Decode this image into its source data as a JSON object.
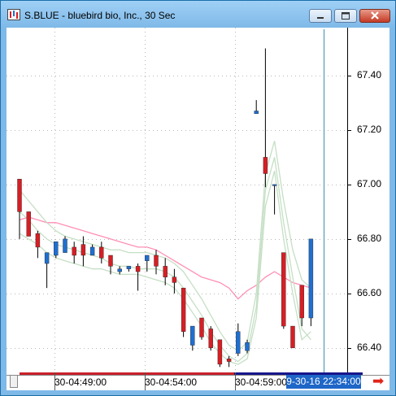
{
  "window": {
    "title": "S.BLUE - bluebird bio, Inc., 30 Sec",
    "controls": [
      "minimize",
      "maximize",
      "close"
    ]
  },
  "icons": {
    "app": "chart-window-icon",
    "minimize": "minimize-icon",
    "maximize": "maximize-icon",
    "close": "close-icon",
    "scroll": "arrow-right-icon"
  },
  "colors": {
    "up_candle": "#1f6fd1",
    "down_candle": "#d81e24",
    "ma_slow": "#ff8fb4",
    "bollinger": "#c5dfc5",
    "cursor_line": "#3a8fb0",
    "current_time_bg": "#1e66c7",
    "scroll_arrow": "#e2231a"
  },
  "time_axis": {
    "labels": [
      "30-04:49:00",
      "30-04:54:00",
      "30-04:59:00"
    ],
    "current_time": "9-30-16 22:34:00"
  },
  "chart_data": {
    "type": "candlestick",
    "title": "S.BLUE - bluebird bio, Inc., 30 Sec",
    "y_ticks": [
      "67.40",
      "67.20",
      "67.00",
      "66.80",
      "66.60",
      "66.40"
    ],
    "ylim": [
      66.31,
      67.57
    ],
    "grid": true,
    "candles": [
      {
        "o": 67.02,
        "h": 67.02,
        "l": 66.8,
        "c": 66.9
      },
      {
        "o": 66.9,
        "h": 66.9,
        "l": 66.81,
        "c": 66.81
      },
      {
        "o": 66.82,
        "h": 66.83,
        "l": 66.73,
        "c": 66.77
      },
      {
        "o": 66.71,
        "h": 66.74,
        "l": 66.62,
        "c": 66.75
      },
      {
        "o": 66.74,
        "h": 66.79,
        "l": 66.73,
        "c": 66.79
      },
      {
        "o": 66.75,
        "h": 66.81,
        "l": 66.75,
        "c": 66.8
      },
      {
        "o": 66.77,
        "h": 66.79,
        "l": 66.71,
        "c": 66.74
      },
      {
        "o": 66.78,
        "h": 66.81,
        "l": 66.7,
        "c": 66.74
      },
      {
        "o": 66.74,
        "h": 66.78,
        "l": 66.74,
        "c": 66.77
      },
      {
        "o": 66.77,
        "h": 66.79,
        "l": 66.71,
        "c": 66.73
      },
      {
        "o": 66.74,
        "h": 66.74,
        "l": 66.67,
        "c": 66.7
      },
      {
        "o": 66.68,
        "h": 66.7,
        "l": 66.67,
        "c": 66.69
      },
      {
        "o": 66.69,
        "h": 66.7,
        "l": 66.68,
        "c": 66.7
      },
      {
        "o": 66.7,
        "h": 66.71,
        "l": 66.61,
        "c": 66.68
      },
      {
        "o": 66.72,
        "h": 66.74,
        "l": 66.68,
        "c": 66.74
      },
      {
        "o": 66.74,
        "h": 66.76,
        "l": 66.67,
        "c": 66.7
      },
      {
        "o": 66.7,
        "h": 66.73,
        "l": 66.63,
        "c": 66.66
      },
      {
        "o": 66.66,
        "h": 66.69,
        "l": 66.6,
        "c": 66.64
      },
      {
        "o": 66.62,
        "h": 66.62,
        "l": 66.44,
        "c": 66.46
      },
      {
        "o": 66.41,
        "h": 66.48,
        "l": 66.39,
        "c": 66.48
      },
      {
        "o": 66.51,
        "h": 66.51,
        "l": 66.43,
        "c": 66.44
      },
      {
        "o": 66.47,
        "h": 66.48,
        "l": 66.39,
        "c": 66.4
      },
      {
        "o": 66.43,
        "h": 66.43,
        "l": 66.33,
        "c": 66.34
      },
      {
        "o": 66.36,
        "h": 66.37,
        "l": 66.33,
        "c": 66.35
      },
      {
        "o": 66.38,
        "h": 66.49,
        "l": 66.37,
        "c": 66.46
      },
      {
        "o": 66.39,
        "h": 66.43,
        "l": 66.38,
        "c": 66.42
      },
      {
        "o": 67.26,
        "h": 67.31,
        "l": 67.26,
        "c": 67.27
      },
      {
        "o": 67.1,
        "h": 67.5,
        "l": 66.99,
        "c": 67.04
      },
      {
        "o": 67.0,
        "h": 67.0,
        "l": 66.89,
        "c": 67.0
      },
      {
        "o": 66.75,
        "h": 66.75,
        "l": 66.47,
        "c": 66.48
      },
      {
        "o": 66.48,
        "h": 66.48,
        "l": 66.4,
        "c": 66.4
      },
      {
        "o": 66.63,
        "h": 66.63,
        "l": 66.48,
        "c": 66.51
      },
      {
        "o": 66.51,
        "h": 66.8,
        "l": 66.48,
        "c": 66.8
      }
    ],
    "overlays": [
      {
        "color": "pink",
        "values": [
          66.87,
          66.88,
          66.87,
          66.86,
          66.86,
          66.85,
          66.84,
          66.83,
          66.82,
          66.81,
          66.8,
          66.79,
          66.78,
          66.77,
          66.77,
          66.76,
          66.74,
          66.72,
          66.7,
          66.68,
          66.66,
          66.65,
          66.64,
          66.62,
          66.58,
          66.61,
          66.63,
          66.66,
          66.68,
          66.66,
          66.64,
          66.63,
          66.62
        ]
      },
      {
        "color": "green-upper",
        "values": [
          66.98,
          66.94,
          66.9,
          66.86,
          66.83,
          66.81,
          66.8,
          66.79,
          66.78,
          66.77,
          66.76,
          66.76,
          66.75,
          66.75,
          66.75,
          66.74,
          66.73,
          66.71,
          66.68,
          66.63,
          66.58,
          66.52,
          66.46,
          66.41,
          66.39,
          66.42,
          66.6,
          67.04,
          67.16,
          66.94,
          66.76,
          66.65,
          66.62
        ]
      },
      {
        "color": "green-middle",
        "values": [
          66.9,
          66.87,
          66.83,
          66.8,
          66.78,
          66.77,
          66.76,
          66.75,
          66.74,
          66.73,
          66.71,
          66.7,
          66.7,
          66.69,
          66.69,
          66.69,
          66.68,
          66.66,
          66.62,
          66.57,
          66.52,
          66.46,
          66.41,
          66.37,
          66.35,
          66.38,
          66.55,
          66.98,
          67.1,
          66.86,
          66.66,
          66.47,
          66.43
        ]
      },
      {
        "color": "green-lower",
        "values": [
          66.82,
          66.8,
          66.78,
          66.75,
          66.73,
          66.72,
          66.71,
          66.7,
          66.69,
          66.69,
          66.68,
          66.67,
          66.67,
          66.67,
          66.66,
          66.65,
          66.64,
          66.62,
          66.58,
          66.53,
          66.48,
          66.42,
          66.38,
          66.35,
          66.34,
          66.36,
          66.51,
          66.92,
          67.05,
          66.8,
          66.6,
          66.43,
          66.46
        ]
      }
    ]
  }
}
